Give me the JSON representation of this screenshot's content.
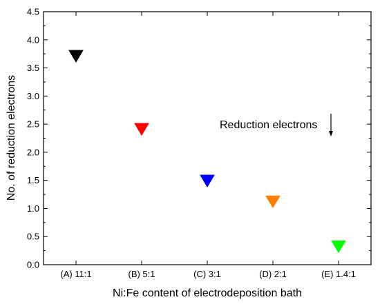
{
  "chart_data": {
    "type": "scatter",
    "title": "",
    "xlabel": "Ni:Fe content of electrodeposition bath",
    "ylabel": "No. of reduction electrons",
    "categories": [
      "(A) 11:1",
      "(B) 5:1",
      "(C) 3:1",
      "(D) 2:1",
      "(E) 1.4:1"
    ],
    "values": [
      3.72,
      2.42,
      1.5,
      1.13,
      0.33
    ],
    "point_colors": [
      "#000000",
      "#ff0000",
      "#0000ff",
      "#ff8000",
      "#00ff00"
    ],
    "marker": "down-triangle",
    "ylim": [
      0.0,
      4.5
    ],
    "yticks": [
      "0.0",
      "0.5",
      "1.0",
      "1.5",
      "2.0",
      "2.5",
      "3.0",
      "3.5",
      "4.0",
      "4.5"
    ],
    "grid": false,
    "annotation": {
      "text": "Reduction electrons",
      "arrow": "down"
    }
  }
}
